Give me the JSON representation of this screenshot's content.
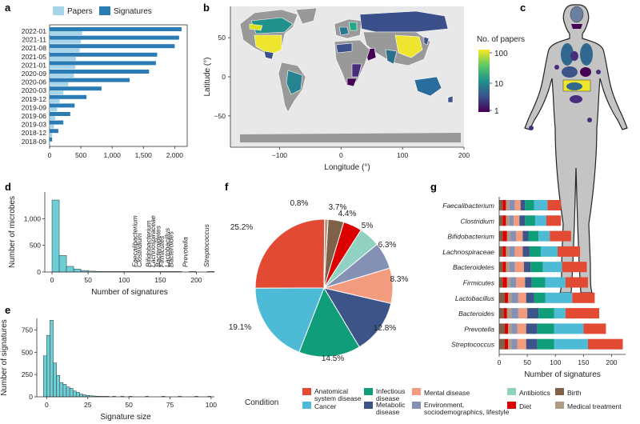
{
  "colors": {
    "papers": "#a8d4ea",
    "signatures": "#2b7bb5",
    "hist": "#6ccfd6",
    "anatomical": "#e34a33",
    "cancer": "#4dbbd5",
    "infectious": "#0f9d7a",
    "metabolic": "#3c5488",
    "mental": "#f39b7f",
    "environment": "#8491b4",
    "antibiotics": "#91d1c2",
    "diet": "#dc0000",
    "birth": "#7e6148",
    "medical": "#b09c85",
    "land": "#999999",
    "ocean": "#e8e8e8"
  },
  "panels": {
    "a": "a",
    "b": "b",
    "c": "c",
    "d": "d",
    "e": "e",
    "f": "f",
    "g": "g"
  },
  "chart_data": [
    {
      "id": "a",
      "type": "bar",
      "categories": [
        "2022-01",
        "2021-11",
        "2021-08",
        "2021-05",
        "2021-01",
        "2020-09",
        "2020-06",
        "2020-03",
        "2019-12",
        "2019-09",
        "2019-06",
        "2019-03",
        "2018-12",
        "2018-09"
      ],
      "series": [
        {
          "name": "Papers",
          "values": [
            520,
            500,
            480,
            420,
            410,
            390,
            300,
            220,
            160,
            120,
            90,
            70,
            40,
            15
          ]
        },
        {
          "name": "Signatures",
          "values": [
            2110,
            2070,
            2000,
            1720,
            1700,
            1590,
            1280,
            830,
            590,
            400,
            330,
            220,
            140,
            40
          ]
        }
      ],
      "xticks": [
        "0",
        "500",
        "1,000",
        "1,500",
        "2,000"
      ],
      "xlim": [
        0,
        2200
      ],
      "legend": "top"
    },
    {
      "id": "b",
      "type": "map",
      "xlabel": "Longitude (°)",
      "ylabel": "Latitude (°)",
      "xticks": [
        "−100",
        "0",
        "100",
        "200"
      ],
      "yticks": [
        "50",
        "0",
        "−50"
      ],
      "colorbar_title": "No. of papers",
      "colorbar_ticks": [
        "100",
        "10",
        "1"
      ],
      "colorscale": [
        "#440154",
        "#3b528b",
        "#21918c",
        "#5ec962",
        "#fde725"
      ]
    },
    {
      "id": "d",
      "type": "bar",
      "xlabel": "Number of signatures",
      "ylabel": "Number of microbes",
      "xticks": [
        "0",
        "50",
        "100",
        "150",
        "200"
      ],
      "yticks": [
        "0",
        "500",
        "1,000"
      ],
      "xlim": [
        -10,
        225
      ],
      "ylim": [
        0,
        1500
      ],
      "bins": [
        {
          "x": 0,
          "v": 1350
        },
        {
          "x": 10,
          "v": 310
        },
        {
          "x": 20,
          "v": 105
        },
        {
          "x": 30,
          "v": 55
        },
        {
          "x": 40,
          "v": 28
        },
        {
          "x": 50,
          "v": 16
        },
        {
          "x": 60,
          "v": 10
        },
        {
          "x": 70,
          "v": 7
        },
        {
          "x": 80,
          "v": 5
        },
        {
          "x": 90,
          "v": 3
        },
        {
          "x": 100,
          "v": 2
        },
        {
          "x": 110,
          "v": 2
        },
        {
          "x": 120,
          "v": 2
        },
        {
          "x": 130,
          "v": 2
        },
        {
          "x": 140,
          "v": 1
        },
        {
          "x": 150,
          "v": 1
        },
        {
          "x": 160,
          "v": 1
        },
        {
          "x": 170,
          "v": 1
        },
        {
          "x": 190,
          "v": 1
        },
        {
          "x": 215,
          "v": 1
        }
      ],
      "annotations": [
        {
          "text": "Faecalibacterium",
          "x": 118
        },
        {
          "text": "Clostridium",
          "x": 124
        },
        {
          "text": "Bifidobacterium",
          "x": 137
        },
        {
          "text": "Lachnospiraceae",
          "x": 143
        },
        {
          "text": "Bacteroidetes",
          "x": 150
        },
        {
          "text": "Firmicutes",
          "x": 155
        },
        {
          "text": "Lactobacillus",
          "x": 163
        },
        {
          "text": "Bacteroides",
          "x": 168
        },
        {
          "text": "Prevotella",
          "x": 188
        },
        {
          "text": "Streptococcus",
          "x": 217
        }
      ]
    },
    {
      "id": "e",
      "type": "bar",
      "xlabel": "Signature size",
      "ylabel": "Number of signatures",
      "xticks": [
        "0",
        "25",
        "50",
        "75",
        "100"
      ],
      "yticks": [
        "0",
        "250",
        "500",
        "750"
      ],
      "xlim": [
        -6,
        102
      ],
      "ylim": [
        0,
        880
      ],
      "bins": [
        {
          "x": -2,
          "v": 460
        },
        {
          "x": 0,
          "v": 690
        },
        {
          "x": 2,
          "v": 860
        },
        {
          "x": 4,
          "v": 380
        },
        {
          "x": 6,
          "v": 240
        },
        {
          "x": 8,
          "v": 160
        },
        {
          "x": 10,
          "v": 140
        },
        {
          "x": 12,
          "v": 110
        },
        {
          "x": 14,
          "v": 95
        },
        {
          "x": 16,
          "v": 65
        },
        {
          "x": 18,
          "v": 50
        },
        {
          "x": 20,
          "v": 30
        },
        {
          "x": 22,
          "v": 22
        },
        {
          "x": 24,
          "v": 16
        },
        {
          "x": 26,
          "v": 12
        },
        {
          "x": 28,
          "v": 9
        },
        {
          "x": 30,
          "v": 7
        },
        {
          "x": 32,
          "v": 5
        },
        {
          "x": 34,
          "v": 4
        },
        {
          "x": 36,
          "v": 3
        },
        {
          "x": 40,
          "v": 2
        },
        {
          "x": 45,
          "v": 2
        },
        {
          "x": 50,
          "v": 1
        },
        {
          "x": 60,
          "v": 1
        },
        {
          "x": 70,
          "v": 1
        },
        {
          "x": 80,
          "v": 1
        },
        {
          "x": 90,
          "v": 1
        },
        {
          "x": 98,
          "v": 1
        }
      ]
    },
    {
      "id": "f",
      "type": "pie",
      "slices": [
        {
          "key": "birth",
          "value": 3.7,
          "label": "3.7%"
        },
        {
          "key": "diet",
          "value": 4.4,
          "label": "4.4%"
        },
        {
          "key": "antibiotics",
          "value": 5,
          "label": "5%"
        },
        {
          "key": "environment",
          "value": 6.3,
          "label": "6.3%"
        },
        {
          "key": "mental",
          "value": 8.3,
          "label": "8.3%"
        },
        {
          "key": "metabolic",
          "value": 12.8,
          "label": "12.8%"
        },
        {
          "key": "infectious",
          "value": 14.5,
          "label": "14.5%"
        },
        {
          "key": "cancer",
          "value": 19.1,
          "label": "19.1%"
        },
        {
          "key": "anatomical",
          "value": 25.2,
          "label": "25.2%"
        },
        {
          "key": "medical",
          "value": 0.8,
          "label": "0.8%"
        }
      ]
    },
    {
      "id": "g",
      "type": "bar",
      "stacked": true,
      "xlabel": "Number of signatures",
      "xticks": [
        "0",
        "50",
        "100",
        "150",
        "200"
      ],
      "xlim": [
        0,
        225
      ],
      "stack_order": [
        "birth",
        "diet",
        "medical",
        "environment",
        "mental",
        "metabolic",
        "infectious",
        "cancer",
        "anatomical"
      ],
      "rows": [
        {
          "name": "Faecalibacterium",
          "values": [
            6,
            6,
            6,
            10,
            10,
            8,
            16,
            24,
            24
          ]
        },
        {
          "name": "Clostridium",
          "values": [
            6,
            6,
            6,
            8,
            10,
            10,
            18,
            20,
            26
          ]
        },
        {
          "name": "Bifidobacterium",
          "values": [
            6,
            8,
            6,
            10,
            12,
            10,
            18,
            20,
            38
          ]
        },
        {
          "name": "Lachnospiraceae",
          "values": [
            6,
            6,
            6,
            10,
            14,
            12,
            20,
            30,
            40
          ]
        },
        {
          "name": "Bacteroidetes",
          "values": [
            6,
            6,
            6,
            10,
            16,
            12,
            22,
            34,
            44
          ]
        },
        {
          "name": "Firmicutes",
          "values": [
            6,
            8,
            6,
            10,
            16,
            12,
            24,
            36,
            40
          ]
        },
        {
          "name": "Lactobacillus",
          "values": [
            10,
            6,
            6,
            12,
            14,
            14,
            20,
            48,
            40
          ]
        },
        {
          "name": "Bacteroides",
          "values": [
            8,
            6,
            8,
            12,
            16,
            20,
            28,
            20,
            60
          ]
        },
        {
          "name": "Prevotella",
          "values": [
            10,
            6,
            6,
            10,
            16,
            20,
            30,
            52,
            40
          ]
        },
        {
          "name": "Streptococcus",
          "values": [
            10,
            6,
            6,
            10,
            16,
            20,
            30,
            60,
            62
          ]
        }
      ]
    }
  ],
  "legend": {
    "title": "Condition",
    "items": [
      {
        "key": "anatomical",
        "label1": "Anatomical",
        "label2": "system disease"
      },
      {
        "key": "cancer",
        "label1": "Cancer",
        "label2": ""
      },
      {
        "key": "infectious",
        "label1": "Infectious",
        "label2": "disease"
      },
      {
        "key": "metabolic",
        "label1": "Metabolic",
        "label2": "disease"
      },
      {
        "key": "mental",
        "label1": "Mental disease",
        "label2": ""
      },
      {
        "key": "environment",
        "label1": "Environment,",
        "label2": "sociodemographics, lifestyle"
      },
      {
        "key": "antibiotics",
        "label1": "Antibiotics",
        "label2": ""
      },
      {
        "key": "diet",
        "label1": "Diet",
        "label2": ""
      },
      {
        "key": "birth",
        "label1": "Birth",
        "label2": ""
      },
      {
        "key": "medical",
        "label1": "Medical treatment",
        "label2": ""
      }
    ]
  }
}
